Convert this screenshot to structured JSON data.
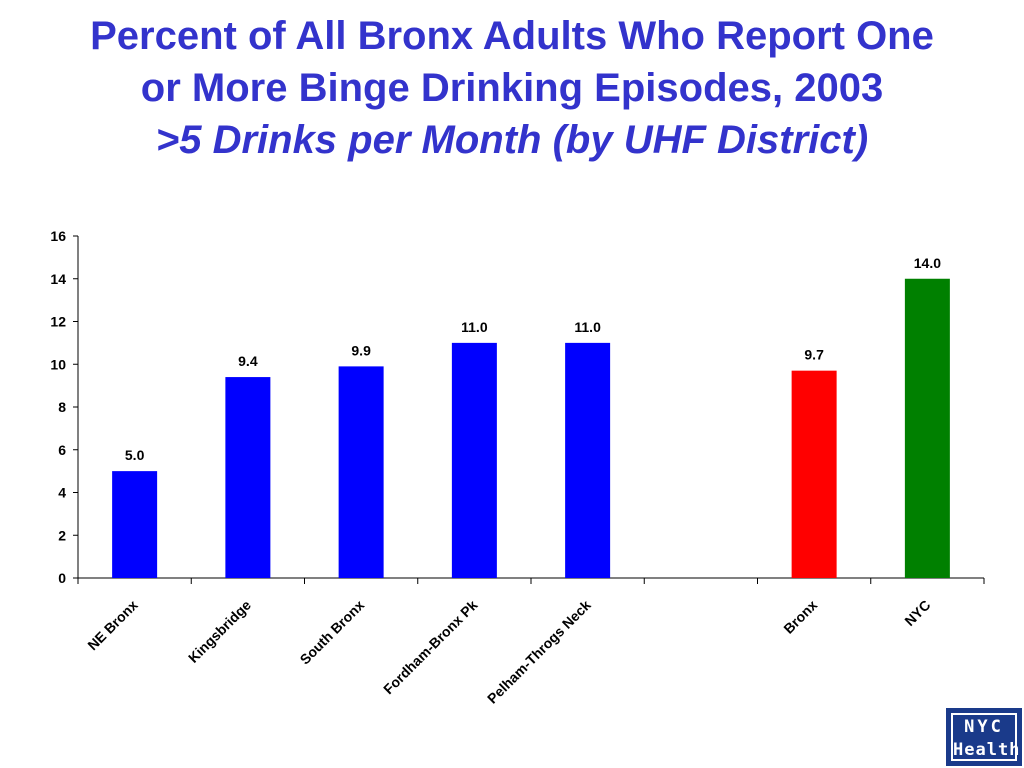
{
  "chart_data": {
    "type": "bar",
    "title": "Percent of All Bronx Adults Who Report One or More Binge Drinking Episodes, 2003",
    "title_line1": "Percent of All Bronx Adults Who Report One",
    "title_line2": "or More Binge Drinking Episodes, 2003",
    "subtitle": ">5 Drinks per Month (by UHF District)",
    "xlabel": "",
    "ylabel": "",
    "ylim": [
      0,
      16
    ],
    "yticks": [
      0,
      2,
      4,
      6,
      8,
      10,
      12,
      14,
      16
    ],
    "grid": false,
    "categories": [
      "NE Bronx",
      "Kingsbridge",
      "South Bronx",
      "Fordham-Bronx Pk",
      "Pelham-Throgs Neck",
      "",
      "Bronx",
      "NYC"
    ],
    "values": [
      5.0,
      9.4,
      9.9,
      11.0,
      11.0,
      null,
      9.7,
      14.0
    ],
    "data_labels": [
      "5.0",
      "9.4",
      "9.9",
      "11.0",
      "11.0",
      "",
      "9.7",
      "14.0"
    ],
    "bar_colors": [
      "#0000ff",
      "#0000ff",
      "#0000ff",
      "#0000ff",
      "#0000ff",
      "",
      "#ff0000",
      "#008000"
    ]
  },
  "logo": {
    "line1": "NYC",
    "line2": "Health"
  },
  "colors": {
    "title": "#3333cc",
    "logo_bg": "#1a3a8a"
  }
}
